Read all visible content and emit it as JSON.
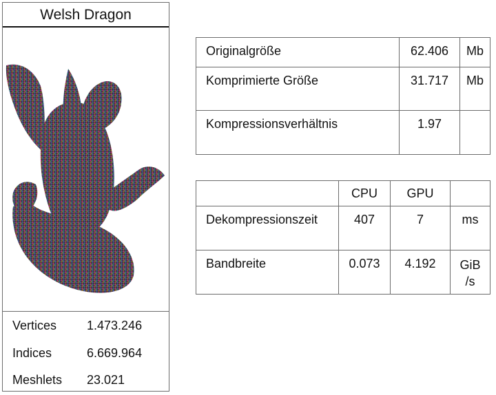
{
  "title": "Welsh Dragon",
  "image": {
    "subject": "dragon-mesh-render"
  },
  "stats": [
    {
      "label": "Vertices",
      "value": "1.473.246"
    },
    {
      "label": "Indices",
      "value": "6.669.964"
    },
    {
      "label": "Meshlets",
      "value": "23.021"
    }
  ],
  "size_table": {
    "rows": [
      {
        "label": "Originalgröße",
        "value": "62.406",
        "unit": "Mb"
      },
      {
        "label": "Komprimierte Größe",
        "value": "31.717",
        "unit": "Mb"
      },
      {
        "label": "Kompressionsverhältnis",
        "value": "1.97",
        "unit": ""
      }
    ]
  },
  "perf_table": {
    "headers": [
      "",
      "CPU",
      "GPU",
      ""
    ],
    "rows": [
      {
        "label": "Dekompressionszeit",
        "cpu": "407",
        "gpu": "7",
        "unit": "ms"
      },
      {
        "label": "Bandbreite",
        "cpu": "0.073",
        "gpu": "4.192",
        "unit": "GiB\n/s"
      }
    ]
  }
}
